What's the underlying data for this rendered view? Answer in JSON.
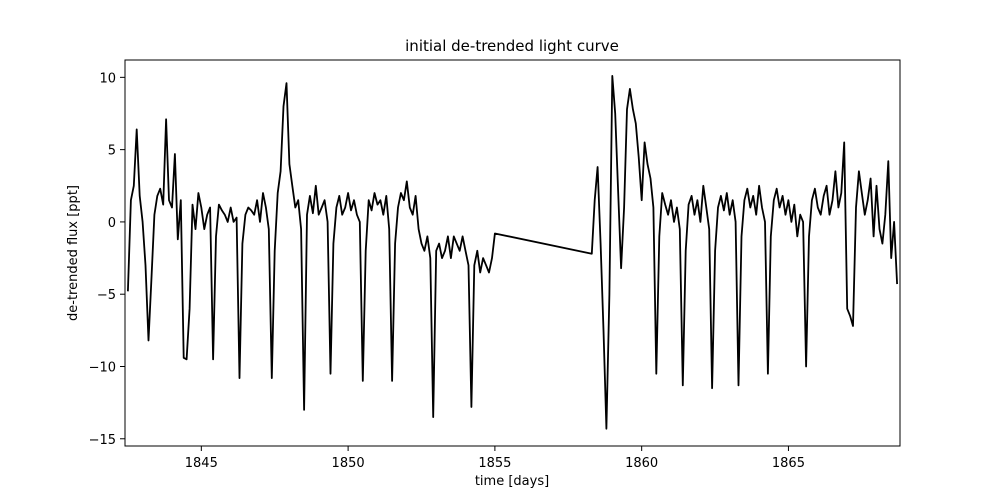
{
  "chart_data": {
    "type": "line",
    "title": "initial de-trended light curve",
    "xlabel": "time [days]",
    "ylabel": "de-trended flux [ppt]",
    "xlim": [
      1842.4,
      1868.8
    ],
    "ylim": [
      -15.5,
      11.2
    ],
    "xticks": [
      1845,
      1850,
      1855,
      1860,
      1865
    ],
    "yticks": [
      10,
      5,
      0,
      -5,
      -10,
      -15
    ],
    "xtick_labels": [
      "1845",
      "1850",
      "1855",
      "1860",
      "1865"
    ],
    "ytick_labels": [
      "10",
      "5",
      "0",
      "−5",
      "−10",
      "−15"
    ],
    "grid": false,
    "legend": "none",
    "line_color": "#000000",
    "series": [
      {
        "values": [
          [
            1842.5,
            -4.8
          ],
          [
            1842.6,
            1.5
          ],
          [
            1842.7,
            2.5
          ],
          [
            1842.8,
            6.4
          ],
          [
            1842.9,
            1.8
          ],
          [
            1843.0,
            0.0
          ],
          [
            1843.1,
            -3.0
          ],
          [
            1843.2,
            -8.2
          ],
          [
            1843.3,
            -4.0
          ],
          [
            1843.4,
            0.5
          ],
          [
            1843.5,
            1.8
          ],
          [
            1843.6,
            2.3
          ],
          [
            1843.7,
            1.2
          ],
          [
            1843.8,
            7.1
          ],
          [
            1843.9,
            1.5
          ],
          [
            1844.0,
            1.0
          ],
          [
            1844.1,
            4.7
          ],
          [
            1844.2,
            -1.2
          ],
          [
            1844.3,
            1.5
          ],
          [
            1844.4,
            -9.4
          ],
          [
            1844.5,
            -9.5
          ],
          [
            1844.6,
            -6.0
          ],
          [
            1844.7,
            1.2
          ],
          [
            1844.8,
            -0.5
          ],
          [
            1844.9,
            2.0
          ],
          [
            1845.0,
            1.0
          ],
          [
            1845.1,
            -0.5
          ],
          [
            1845.2,
            0.5
          ],
          [
            1845.3,
            1.0
          ],
          [
            1845.4,
            -9.5
          ],
          [
            1845.5,
            -1.0
          ],
          [
            1845.6,
            1.2
          ],
          [
            1845.7,
            0.8
          ],
          [
            1845.8,
            0.5
          ],
          [
            1845.9,
            0.0
          ],
          [
            1846.0,
            1.0
          ],
          [
            1846.1,
            0.0
          ],
          [
            1846.2,
            0.3
          ],
          [
            1846.3,
            -10.8
          ],
          [
            1846.4,
            -1.5
          ],
          [
            1846.5,
            0.5
          ],
          [
            1846.6,
            1.0
          ],
          [
            1846.7,
            0.8
          ],
          [
            1846.8,
            0.5
          ],
          [
            1846.9,
            1.5
          ],
          [
            1847.0,
            0.0
          ],
          [
            1847.1,
            2.0
          ],
          [
            1847.2,
            1.0
          ],
          [
            1847.3,
            -0.5
          ],
          [
            1847.4,
            -10.8
          ],
          [
            1847.5,
            -2.0
          ],
          [
            1847.6,
            2.0
          ],
          [
            1847.7,
            3.5
          ],
          [
            1847.8,
            8.0
          ],
          [
            1847.9,
            9.6
          ],
          [
            1848.0,
            4.0
          ],
          [
            1848.1,
            2.5
          ],
          [
            1848.2,
            1.0
          ],
          [
            1848.3,
            1.5
          ],
          [
            1848.4,
            -0.5
          ],
          [
            1848.5,
            -13.0
          ],
          [
            1848.6,
            0.5
          ],
          [
            1848.7,
            1.8
          ],
          [
            1848.8,
            0.6
          ],
          [
            1848.9,
            2.5
          ],
          [
            1849.0,
            0.5
          ],
          [
            1849.1,
            1.0
          ],
          [
            1849.2,
            1.5
          ],
          [
            1849.3,
            0.0
          ],
          [
            1849.4,
            -10.5
          ],
          [
            1849.5,
            -1.5
          ],
          [
            1849.6,
            1.0
          ],
          [
            1849.7,
            1.8
          ],
          [
            1849.8,
            0.5
          ],
          [
            1849.9,
            1.0
          ],
          [
            1850.0,
            2.0
          ],
          [
            1850.1,
            0.8
          ],
          [
            1850.2,
            1.5
          ],
          [
            1850.3,
            0.5
          ],
          [
            1850.4,
            0.0
          ],
          [
            1850.5,
            -11.0
          ],
          [
            1850.6,
            -2.0
          ],
          [
            1850.7,
            1.5
          ],
          [
            1850.8,
            0.8
          ],
          [
            1850.9,
            2.0
          ],
          [
            1851.0,
            1.2
          ],
          [
            1851.1,
            1.5
          ],
          [
            1851.2,
            0.5
          ],
          [
            1851.3,
            1.8
          ],
          [
            1851.4,
            -0.5
          ],
          [
            1851.5,
            -11.0
          ],
          [
            1851.6,
            -1.5
          ],
          [
            1851.7,
            1.0
          ],
          [
            1851.8,
            2.0
          ],
          [
            1851.9,
            1.5
          ],
          [
            1852.0,
            2.8
          ],
          [
            1852.1,
            1.0
          ],
          [
            1852.2,
            0.5
          ],
          [
            1852.3,
            1.8
          ],
          [
            1852.4,
            -0.5
          ],
          [
            1852.5,
            -1.5
          ],
          [
            1852.6,
            -2.0
          ],
          [
            1852.7,
            -1.0
          ],
          [
            1852.8,
            -2.5
          ],
          [
            1852.9,
            -13.5
          ],
          [
            1853.0,
            -2.0
          ],
          [
            1853.1,
            -1.5
          ],
          [
            1853.2,
            -2.5
          ],
          [
            1853.3,
            -2.0
          ],
          [
            1853.4,
            -1.0
          ],
          [
            1853.5,
            -2.5
          ],
          [
            1853.6,
            -1.0
          ],
          [
            1853.7,
            -1.5
          ],
          [
            1853.8,
            -2.0
          ],
          [
            1853.9,
            -1.0
          ],
          [
            1854.0,
            -2.0
          ],
          [
            1854.1,
            -3.0
          ],
          [
            1854.2,
            -12.8
          ],
          [
            1854.3,
            -3.0
          ],
          [
            1854.4,
            -2.0
          ],
          [
            1854.5,
            -3.5
          ],
          [
            1854.6,
            -2.5
          ],
          [
            1854.7,
            -3.0
          ],
          [
            1854.8,
            -3.5
          ],
          [
            1854.9,
            -2.5
          ],
          [
            1855.0,
            -0.8
          ],
          [
            1858.3,
            -2.2
          ],
          [
            1858.4,
            1.5
          ],
          [
            1858.5,
            3.8
          ],
          [
            1858.6,
            -1.5
          ],
          [
            1858.7,
            -7.5
          ],
          [
            1858.8,
            -14.3
          ],
          [
            1858.9,
            -5.0
          ],
          [
            1859.0,
            10.1
          ],
          [
            1859.1,
            7.5
          ],
          [
            1859.2,
            2.0
          ],
          [
            1859.3,
            -3.2
          ],
          [
            1859.4,
            1.0
          ],
          [
            1859.5,
            7.8
          ],
          [
            1859.6,
            9.2
          ],
          [
            1859.7,
            7.8
          ],
          [
            1859.8,
            6.8
          ],
          [
            1859.9,
            4.5
          ],
          [
            1860.0,
            1.5
          ],
          [
            1860.1,
            5.5
          ],
          [
            1860.2,
            4.0
          ],
          [
            1860.3,
            3.0
          ],
          [
            1860.4,
            1.0
          ],
          [
            1860.5,
            -10.5
          ],
          [
            1860.6,
            -1.0
          ],
          [
            1860.7,
            2.0
          ],
          [
            1860.8,
            1.2
          ],
          [
            1860.9,
            0.5
          ],
          [
            1861.0,
            1.5
          ],
          [
            1861.1,
            0.0
          ],
          [
            1861.2,
            1.0
          ],
          [
            1861.3,
            -0.5
          ],
          [
            1861.4,
            -11.3
          ],
          [
            1861.5,
            -2.0
          ],
          [
            1861.6,
            1.2
          ],
          [
            1861.7,
            1.8
          ],
          [
            1861.8,
            0.5
          ],
          [
            1861.9,
            1.5
          ],
          [
            1862.0,
            0.0
          ],
          [
            1862.1,
            2.5
          ],
          [
            1862.2,
            1.0
          ],
          [
            1862.3,
            -0.5
          ],
          [
            1862.4,
            -11.5
          ],
          [
            1862.5,
            -2.0
          ],
          [
            1862.6,
            1.0
          ],
          [
            1862.7,
            1.8
          ],
          [
            1862.8,
            0.8
          ],
          [
            1862.9,
            2.0
          ],
          [
            1863.0,
            0.5
          ],
          [
            1863.1,
            1.5
          ],
          [
            1863.2,
            0.0
          ],
          [
            1863.3,
            -11.3
          ],
          [
            1863.4,
            -1.0
          ],
          [
            1863.5,
            1.5
          ],
          [
            1863.6,
            2.3
          ],
          [
            1863.7,
            1.0
          ],
          [
            1863.8,
            1.8
          ],
          [
            1863.9,
            0.5
          ],
          [
            1864.0,
            2.5
          ],
          [
            1864.1,
            1.0
          ],
          [
            1864.2,
            0.0
          ],
          [
            1864.3,
            -10.5
          ],
          [
            1864.4,
            -1.0
          ],
          [
            1864.5,
            1.5
          ],
          [
            1864.6,
            2.3
          ],
          [
            1864.7,
            1.0
          ],
          [
            1864.8,
            1.8
          ],
          [
            1864.9,
            0.5
          ],
          [
            1865.0,
            1.5
          ],
          [
            1865.1,
            0.0
          ],
          [
            1865.2,
            1.2
          ],
          [
            1865.3,
            -1.0
          ],
          [
            1865.4,
            0.5
          ],
          [
            1865.5,
            0.0
          ],
          [
            1865.6,
            -10.0
          ],
          [
            1865.7,
            -1.0
          ],
          [
            1865.8,
            1.5
          ],
          [
            1865.9,
            2.3
          ],
          [
            1866.0,
            1.0
          ],
          [
            1866.1,
            0.5
          ],
          [
            1866.2,
            1.8
          ],
          [
            1866.3,
            2.5
          ],
          [
            1866.4,
            0.5
          ],
          [
            1866.5,
            1.5
          ],
          [
            1866.6,
            3.5
          ],
          [
            1866.7,
            1.0
          ],
          [
            1866.8,
            2.0
          ],
          [
            1866.9,
            5.5
          ],
          [
            1867.0,
            -6.0
          ],
          [
            1867.1,
            -6.5
          ],
          [
            1867.2,
            -7.2
          ],
          [
            1867.3,
            1.0
          ],
          [
            1867.4,
            3.5
          ],
          [
            1867.5,
            2.0
          ],
          [
            1867.6,
            0.5
          ],
          [
            1867.7,
            1.5
          ],
          [
            1867.8,
            3.0
          ],
          [
            1867.9,
            -1.0
          ],
          [
            1868.0,
            2.5
          ],
          [
            1868.1,
            -0.5
          ],
          [
            1868.2,
            -1.5
          ],
          [
            1868.3,
            0.5
          ],
          [
            1868.4,
            4.2
          ],
          [
            1868.5,
            -2.5
          ],
          [
            1868.6,
            0.0
          ],
          [
            1868.7,
            -4.3
          ]
        ]
      }
    ]
  }
}
